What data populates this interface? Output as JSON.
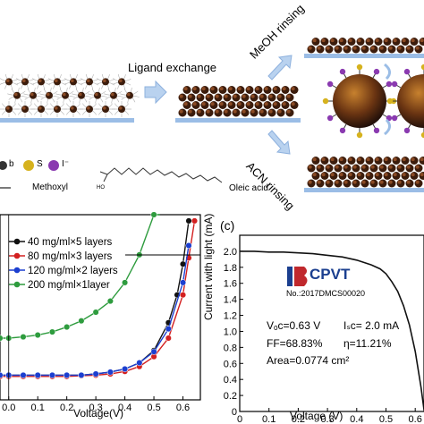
{
  "schematic": {
    "ligand_exchange_label": "Ligand exchange",
    "meoh_label": "MeOH rinsing",
    "acn_label": "ACN rinsing",
    "legend": {
      "pb_symbol": "b",
      "s_symbol": "S",
      "i_symbol": "I⁻",
      "methoxyl_label": "Methoxyl",
      "oleic_label": "Oleic acid",
      "ho_label": "HO"
    },
    "colors": {
      "substrate": "#9bbde6",
      "qd_core": "#5a2a14",
      "qd_shell": "#2a1a10",
      "iodide": "#8a3ab0",
      "sulfur": "#d6b21e",
      "arrow": "#b9d2ef"
    }
  },
  "panel_b": {
    "x_label": "Voltage(V)",
    "x_ticks": [
      "0.0",
      "0.1",
      "0.2",
      "0.3",
      "0.4",
      "0.5",
      "0.6"
    ]
  },
  "panel_c": {
    "letter": "(c)",
    "y_label": "Current with light (mA)",
    "x_label": "Voltage (V)",
    "x_ticks": [
      "0",
      "0.1",
      "0.2",
      "0.3",
      "0.4",
      "0.5",
      "0.6"
    ],
    "y_ticks": [
      "0",
      "0.2",
      "0.4",
      "0.6",
      "0.8",
      "1.0",
      "1.2",
      "1.4",
      "1.6",
      "1.8",
      "2.0"
    ],
    "logo_text": "CPVT",
    "cert_no": "No.:2017DMCS00020",
    "voc": "Vₒᴄ=0.63 V",
    "isc": "Iₛᴄ= 2.0 mA",
    "ff": "FF=68.83%",
    "eta": "η=11.21%",
    "area": "Area=0.0774 cm²"
  },
  "chart_data": [
    {
      "type": "line",
      "xlabel": "Voltage(V)",
      "xlim": [
        -0.03,
        0.66
      ],
      "series": [
        {
          "name": "40 mg/ml×5 layers",
          "color": "#111111",
          "x": [
            -0.03,
            0.0,
            0.05,
            0.1,
            0.15,
            0.2,
            0.25,
            0.3,
            0.35,
            0.4,
            0.45,
            0.5,
            0.55,
            0.58,
            0.6,
            0.62
          ],
          "y": [
            0.0,
            0.0,
            0.0,
            0.0,
            0.0,
            0.0,
            0.0,
            0.02,
            0.05,
            0.1,
            0.2,
            0.4,
            0.85,
            1.3,
            1.8,
            2.5
          ]
        },
        {
          "name": "80 mg/ml×3 layers",
          "color": "#d32020",
          "x": [
            -0.03,
            0.0,
            0.05,
            0.1,
            0.15,
            0.2,
            0.25,
            0.3,
            0.35,
            0.4,
            0.45,
            0.5,
            0.55,
            0.6,
            0.62,
            0.64
          ],
          "y": [
            -0.02,
            -0.02,
            -0.02,
            -0.02,
            -0.02,
            -0.02,
            -0.01,
            0.0,
            0.02,
            0.06,
            0.14,
            0.3,
            0.6,
            1.3,
            1.9,
            2.5
          ]
        },
        {
          "name": "120 mg/ml×2 layers",
          "color": "#1c3fd0",
          "x": [
            -0.03,
            0.0,
            0.05,
            0.1,
            0.15,
            0.2,
            0.25,
            0.3,
            0.35,
            0.4,
            0.45,
            0.5,
            0.55,
            0.6,
            0.62
          ],
          "y": [
            0.0,
            0.0,
            0.0,
            0.0,
            0.0,
            0.0,
            0.0,
            0.02,
            0.05,
            0.1,
            0.2,
            0.38,
            0.75,
            1.5,
            2.1
          ]
        },
        {
          "name": "200 mg/ml×1layer",
          "color": "#2e9c3e",
          "x": [
            -0.03,
            0.0,
            0.05,
            0.1,
            0.15,
            0.2,
            0.25,
            0.3,
            0.35,
            0.4,
            0.45,
            0.5,
            0.52
          ],
          "y": [
            0.6,
            0.6,
            0.62,
            0.65,
            0.7,
            0.78,
            0.88,
            1.02,
            1.2,
            1.5,
            1.95,
            2.6,
            3.0
          ]
        }
      ]
    },
    {
      "type": "line",
      "xlabel": "Voltage (V)",
      "ylabel": "Current with light (mA)",
      "xlim": [
        0,
        0.63
      ],
      "ylim": [
        0,
        2.2
      ],
      "series": [
        {
          "x": [
            0.0,
            0.05,
            0.1,
            0.15,
            0.2,
            0.25,
            0.3,
            0.35,
            0.4,
            0.45,
            0.48,
            0.5,
            0.52,
            0.54,
            0.56,
            0.58,
            0.6,
            0.62,
            0.63
          ],
          "y": [
            2.0,
            2.0,
            1.99,
            1.99,
            1.98,
            1.97,
            1.95,
            1.93,
            1.89,
            1.83,
            1.78,
            1.72,
            1.62,
            1.5,
            1.32,
            1.08,
            0.75,
            0.3,
            0.02
          ]
        }
      ]
    }
  ]
}
